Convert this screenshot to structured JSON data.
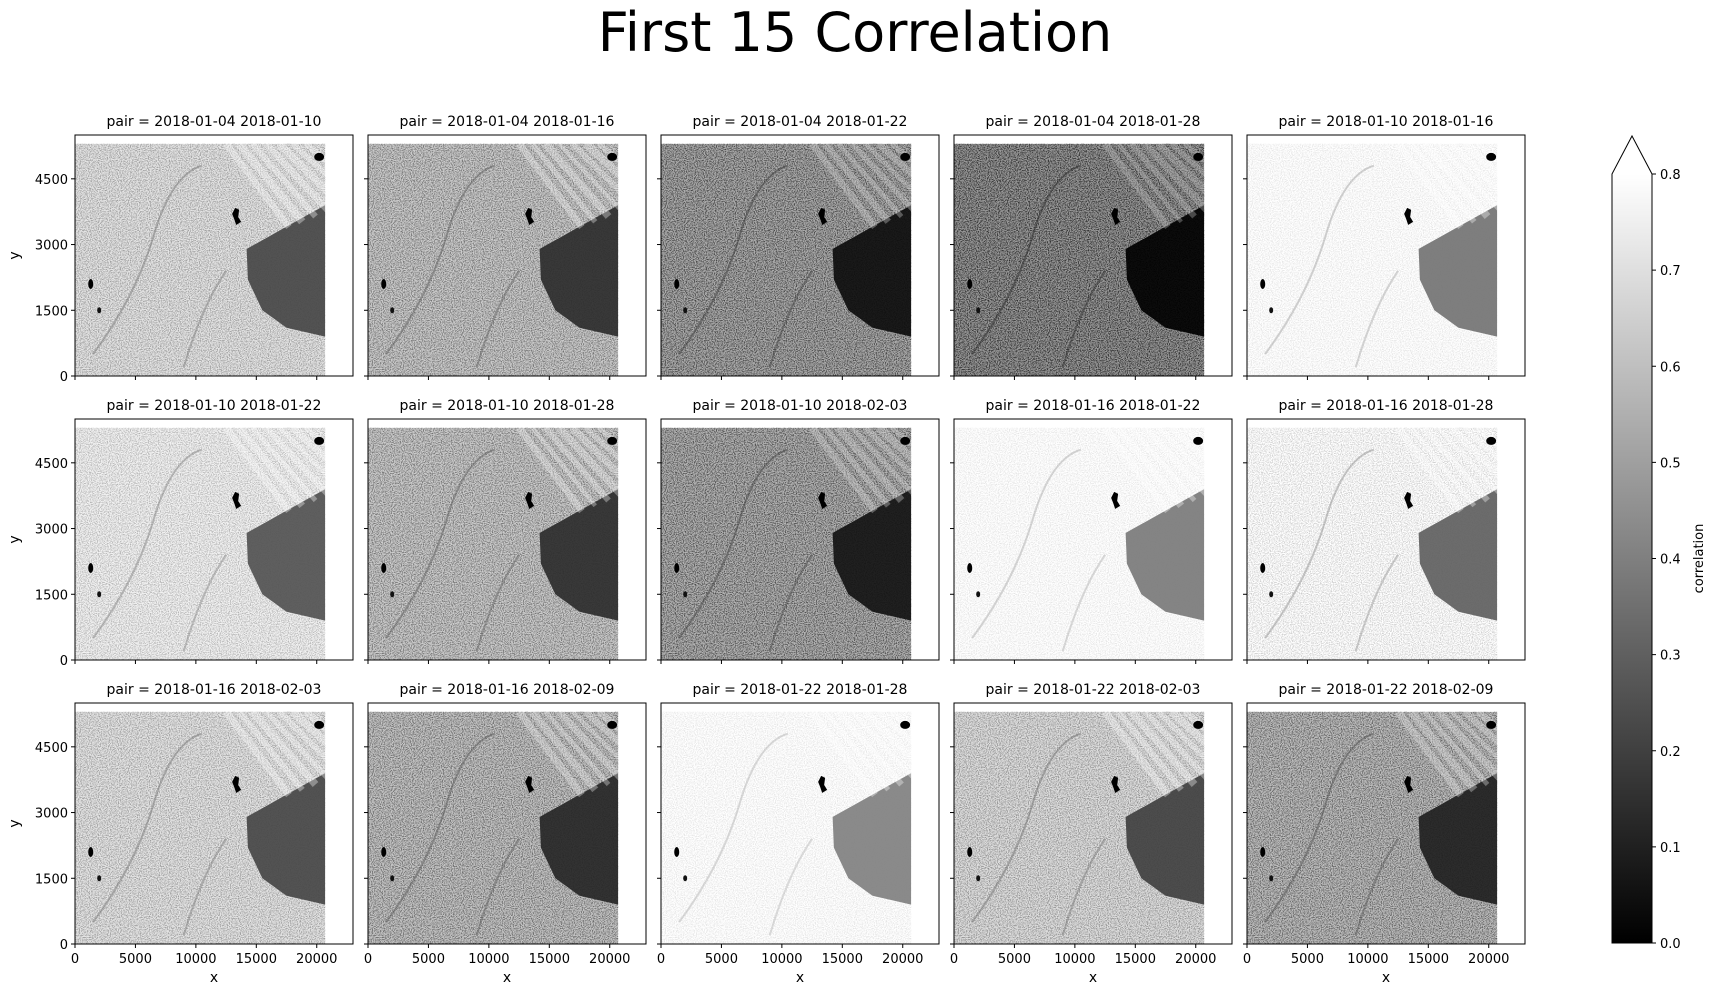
{
  "figure": {
    "title": "First 15 Correlation"
  },
  "colors": {
    "background": "#ffffff",
    "axis": "#000000",
    "cmap_low": "#000000",
    "cmap_high": "#ffffff"
  },
  "chart_data": {
    "type": "heatmap",
    "title": "First 15 Correlation",
    "facet_variable": "pair",
    "layout": {
      "rows": 3,
      "cols": 5
    },
    "xlabel": "x",
    "ylabel": "y",
    "xlim": [
      0,
      23000
    ],
    "ylim": [
      0,
      5500
    ],
    "xticks": [
      0,
      5000,
      10000,
      15000,
      20000
    ],
    "yticks": [
      0,
      1500,
      3000,
      4500
    ],
    "data_extent": {
      "x": [
        0,
        20700
      ],
      "y": [
        0,
        5300
      ]
    },
    "colormap": "gray",
    "colorbar": {
      "label": "correlation",
      "range": [
        0.0,
        0.8
      ],
      "ticks": [
        "0.0",
        "0.1",
        "0.2",
        "0.3",
        "0.4",
        "0.5",
        "0.6",
        "0.7",
        "0.8"
      ],
      "extend": "max"
    },
    "panels": [
      {
        "title": "pair = 2018-01-04 2018-01-10",
        "mean_correlation": 0.6
      },
      {
        "title": "pair = 2018-01-04 2018-01-16",
        "mean_correlation": 0.52
      },
      {
        "title": "pair = 2018-01-04 2018-01-22",
        "mean_correlation": 0.42
      },
      {
        "title": "pair = 2018-01-04 2018-01-28",
        "mean_correlation": 0.36
      },
      {
        "title": "pair = 2018-01-10 2018-01-16",
        "mean_correlation": 0.74
      },
      {
        "title": "pair = 2018-01-10 2018-01-22",
        "mean_correlation": 0.64
      },
      {
        "title": "pair = 2018-01-10 2018-01-28",
        "mean_correlation": 0.52
      },
      {
        "title": "pair = 2018-01-10 2018-02-03",
        "mean_correlation": 0.44
      },
      {
        "title": "pair = 2018-01-16 2018-01-22",
        "mean_correlation": 0.76
      },
      {
        "title": "pair = 2018-01-16 2018-01-28",
        "mean_correlation": 0.68
      },
      {
        "title": "pair = 2018-01-16 2018-02-03",
        "mean_correlation": 0.6
      },
      {
        "title": "pair = 2018-01-16 2018-02-09",
        "mean_correlation": 0.5
      },
      {
        "title": "pair = 2018-01-22 2018-01-28",
        "mean_correlation": 0.78
      },
      {
        "title": "pair = 2018-01-22 2018-02-03",
        "mean_correlation": 0.58
      },
      {
        "title": "pair = 2018-01-22 2018-02-09",
        "mean_correlation": 0.48
      }
    ]
  }
}
